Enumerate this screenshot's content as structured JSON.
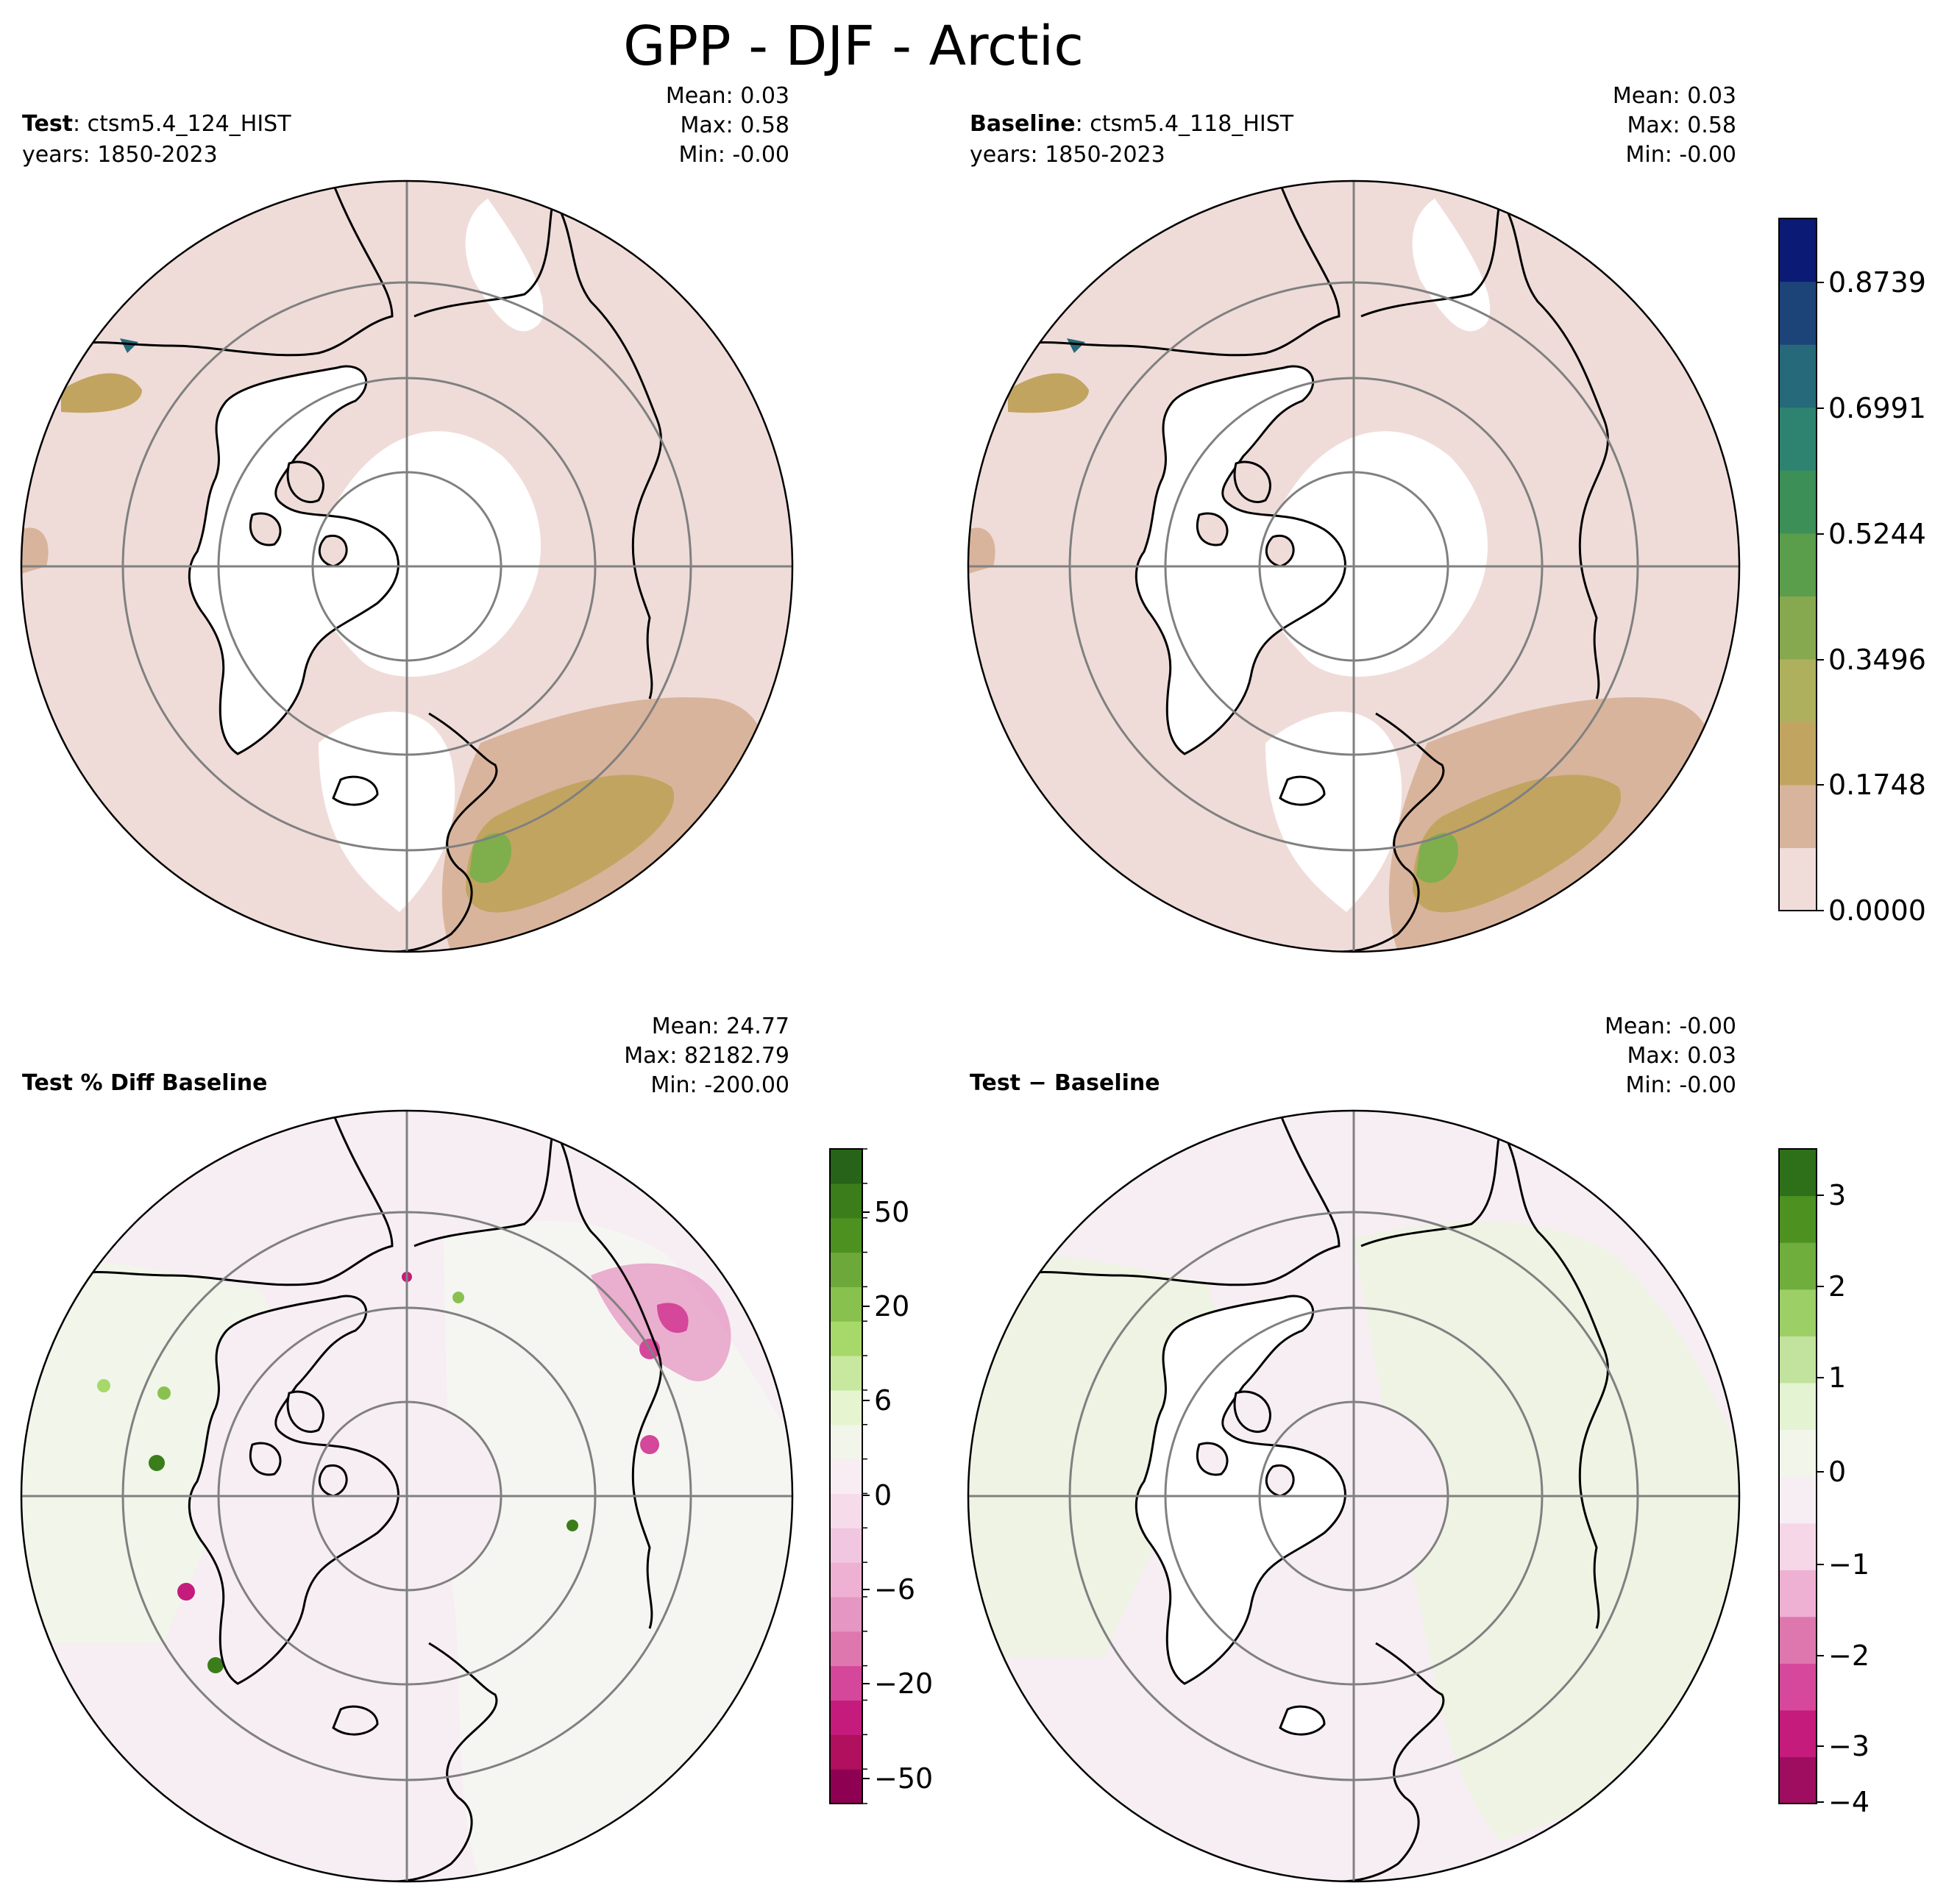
{
  "figure": {
    "title": "GPP - DJF - Arctic"
  },
  "panels": [
    {
      "id": "test",
      "label_bold": "Test",
      "label_rest": ": ctsm5.4_124_HIST",
      "years": "years: 1850-2023",
      "stats": [
        "Mean:  0.03",
        "Max:  0.58",
        "Min: -0.00"
      ]
    },
    {
      "id": "baseline",
      "label_bold": "Baseline",
      "label_rest": ": ctsm5.4_118_HIST",
      "years": "years: 1850-2023",
      "stats": [
        "Mean:  0.03",
        "Max:  0.58",
        "Min: -0.00"
      ]
    },
    {
      "id": "pct-diff",
      "label_bold": "Test % Diff Baseline",
      "stats": [
        "Mean: 24.77",
        "Max: 82182.79",
        "Min: -200.00"
      ]
    },
    {
      "id": "diff",
      "label_bold": "Test − Baseline",
      "stats": [
        "Mean: -0.00",
        "Max:  0.03",
        "Min: -0.00"
      ]
    }
  ],
  "colorbars": {
    "gpp": {
      "ticks": [
        "0.8739",
        "0.6991",
        "0.5244",
        "0.3496",
        "0.1748",
        "0.0000"
      ],
      "colors": [
        "#f0dcd9",
        "#d9b49c",
        "#c2a461",
        "#aeb05d",
        "#86a94f",
        "#5a9d4a",
        "#3d8f58",
        "#2e8370",
        "#26697a",
        "#1d4478",
        "#0b1a74"
      ]
    },
    "pct": {
      "ticks": [
        "50",
        "20",
        "6",
        "0",
        "−6",
        "−20",
        "−50"
      ],
      "colors": [
        "#8e0152",
        "#b0105e",
        "#c51b7d",
        "#d4479a",
        "#de77ae",
        "#e596c2",
        "#eeb1d3",
        "#f1c6e0",
        "#f6dbea",
        "#f7edf3",
        "#f2f6ea",
        "#e6f5d0",
        "#c8e8a0",
        "#a6d96a",
        "#89c14e",
        "#6da93a",
        "#4d9221",
        "#3a7d1a",
        "#276419"
      ]
    },
    "diff": {
      "ticks": [
        "3",
        "2",
        "1",
        "0",
        "−1",
        "−2",
        "−3",
        "−4"
      ],
      "colors": [
        "#9e0d5f",
        "#c51b7d",
        "#d6489b",
        "#de77ae",
        "#eeb1d3",
        "#f6d7e8",
        "#f7eef3",
        "#f2f5e9",
        "#e4f3d2",
        "#c1e39d",
        "#9ccf66",
        "#6fae3c",
        "#4d9221",
        "#2e6f1a"
      ]
    }
  },
  "map_colors": {
    "gpp_land": "#efdcd8",
    "gpp_low": "#d9b49c",
    "gpp_mid": "#c2a461",
    "gpp_green": "#7fae4c",
    "pct_land": "#f7eef3",
    "pct_green_area": "#f1f5ea",
    "pct_pink": "#de77ae",
    "diff_land": "#f6eef3",
    "diff_green": "#eef3e4"
  }
}
